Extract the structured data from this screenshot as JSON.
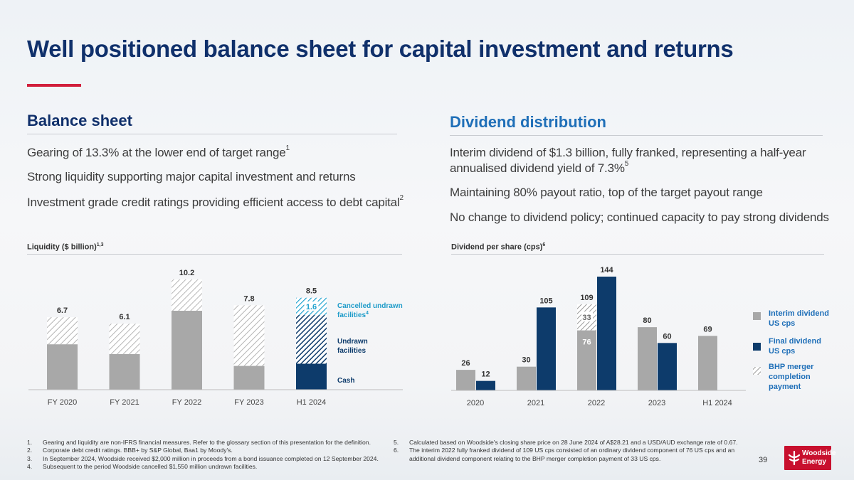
{
  "title": "Well positioned balance sheet for capital investment and returns",
  "balance": {
    "heading": "Balance sheet",
    "b1": "Gearing of 13.3% at the lower end of target range",
    "b1_sup": "1",
    "b2": "Strong liquidity supporting major capital investment and returns",
    "b3": "Investment grade credit ratings providing efficient access to debt capital",
    "b3_sup": "2"
  },
  "dividend": {
    "heading": "Dividend distribution",
    "b1a": "Interim dividend of $1.3 billion, fully franked, representing a half-year",
    "b1b": "annualised dividend yield of 7.3%",
    "b1_sup": "5",
    "b2": "Maintaining 80% payout ratio, top of the target payout range",
    "b3": "No change to dividend policy; continued capacity to pay strong dividends"
  },
  "chart_data": [
    {
      "type": "bar",
      "title": "Liquidity ($ billion)",
      "title_sup": "1,3",
      "categories": [
        "FY 2020",
        "FY 2021",
        "FY 2022",
        "FY 2023",
        "H1 2024"
      ],
      "series": [
        {
          "name": "Cash",
          "values": [
            4.2,
            3.3,
            7.3,
            2.2,
            2.4
          ]
        },
        {
          "name": "Undrawn facilities",
          "values": [
            2.5,
            2.8,
            2.9,
            5.6,
            4.5
          ]
        },
        {
          "name": "Cancelled undrawn facilities",
          "values": [
            0,
            0,
            0,
            0,
            1.6
          ]
        }
      ],
      "totals": [
        "6.7",
        "6.1",
        "10.2",
        "7.8",
        "8.5"
      ],
      "segment_label": "1.6",
      "legend": {
        "cancelled": "Cancelled undrawn",
        "cancelled2": "facilities",
        "cancelled_sup": "4",
        "undrawn": "Undrawn",
        "undrawn2": "facilities",
        "cash": "Cash"
      },
      "colors": {
        "cash_hist": "#a8a8a8",
        "cash_h1": "#0d3b6b",
        "cancelled": "#21a3cf",
        "undrawn_h1": "#0d3b6b"
      },
      "ylim": [
        0,
        11
      ]
    },
    {
      "type": "bar",
      "title": "Dividend per share (cps)",
      "title_sup": "6",
      "categories": [
        "2020",
        "2021",
        "2022",
        "2023",
        "H1 2024"
      ],
      "series": [
        {
          "name": "Interim dividend US cps",
          "values": [
            26,
            30,
            76,
            80,
            69
          ]
        },
        {
          "name": "Final dividend US cps",
          "values": [
            12,
            105,
            144,
            60,
            null
          ]
        },
        {
          "name": "BHP merger completion payment",
          "values": [
            null,
            null,
            33,
            null,
            null
          ]
        }
      ],
      "labels": {
        "bhp_total": "109"
      },
      "legend": {
        "interim1": "Interim dividend",
        "interim2": "US cps",
        "final1": "Final dividend",
        "final2": "US cps",
        "bhp1": "BHP merger",
        "bhp2": "completion",
        "bhp3": "payment"
      },
      "colors": {
        "interim": "#a8a8a8",
        "final": "#0d3b6b",
        "bhp": "#9a9a9a"
      },
      "ylim": [
        0,
        150
      ]
    }
  ],
  "footnotes": [
    {
      "num": "1.",
      "text": "Gearing and liquidity are non-IFRS financial measures. Refer to the glossary section of this presentation for the definition."
    },
    {
      "num": "2.",
      "text": "Corporate debt credit ratings. BBB+ by S&P Global, Baa1 by Moody's."
    },
    {
      "num": "3.",
      "text": "In September 2024, Woodside received $2,000 million in proceeds from a bond issuance completed on 12 September 2024."
    },
    {
      "num": "4.",
      "text": "Subsequent to the period Woodside cancelled $1,550 million undrawn facilities."
    },
    {
      "num": "5.",
      "text": "Calculated based on Woodside's closing share price on 28 June 2024 of A$28.21 and a USD/AUD exchange rate of 0.67."
    },
    {
      "num": "6.",
      "text": "The interim 2022 fully franked dividend of 109 US cps consisted of an ordinary dividend component of 76 US cps and an"
    },
    {
      "num": "",
      "text": "additional dividend component relating to the BHP merger completion payment of 33 US cps."
    }
  ],
  "page_number": "39",
  "logo": {
    "line1": "Woodside",
    "line2": "Energy"
  }
}
